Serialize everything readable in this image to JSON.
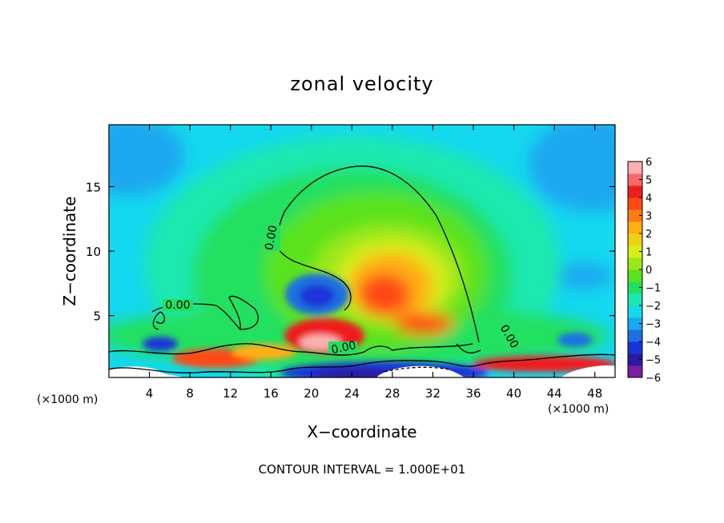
{
  "chart_data": {
    "type": "heatmap",
    "title": "zonal velocity",
    "xlabel": "X−coordinate",
    "ylabel": "Z−coordinate",
    "x_unit": "(×1000 m)",
    "z_unit": "(×1000 m)",
    "xlim": [
      0,
      50
    ],
    "ylim": [
      0.2,
      19.8
    ],
    "x_ticks": [
      "4",
      "8",
      "12",
      "16",
      "20",
      "24",
      "28",
      "32",
      "36",
      "40",
      "44",
      "48"
    ],
    "y_ticks": [
      "5",
      "10",
      "15"
    ],
    "colorbar": {
      "ticks": [
        "6",
        "5",
        "4",
        "3",
        "2",
        "1",
        "0",
        "−1",
        "−2",
        "−3",
        "−4",
        "−5",
        "−6"
      ],
      "min": -6,
      "max": 6,
      "colors": [
        "#7a1fa2",
        "#2a1aa0",
        "#1a34d8",
        "#1f6fe0",
        "#1aa8f0",
        "#14d8ee",
        "#1ae8b0",
        "#20e060",
        "#5ae21a",
        "#9ae81a",
        "#d8ee1a",
        "#f0d014",
        "#ffae14",
        "#ff7a14",
        "#ff4a18",
        "#ef1e1e",
        "#f86868",
        "#fbb0b0"
      ]
    },
    "contour_labels": [
      "0.00",
      "0.00",
      "0.00",
      "0.00"
    ],
    "contour_interval_text": "CONTOUR INTERVAL = 1.000E+01",
    "features": [
      {
        "kind": "positive-core",
        "x": 27,
        "z": 7,
        "value": 5
      },
      {
        "kind": "negative-core",
        "x": 21,
        "z": 6.5,
        "value": -5
      },
      {
        "kind": "positive-shear",
        "x": 21,
        "z": 2.8,
        "value": 6
      },
      {
        "kind": "negative-surface",
        "x": 25,
        "z": 0.5,
        "value": -5
      }
    ]
  }
}
